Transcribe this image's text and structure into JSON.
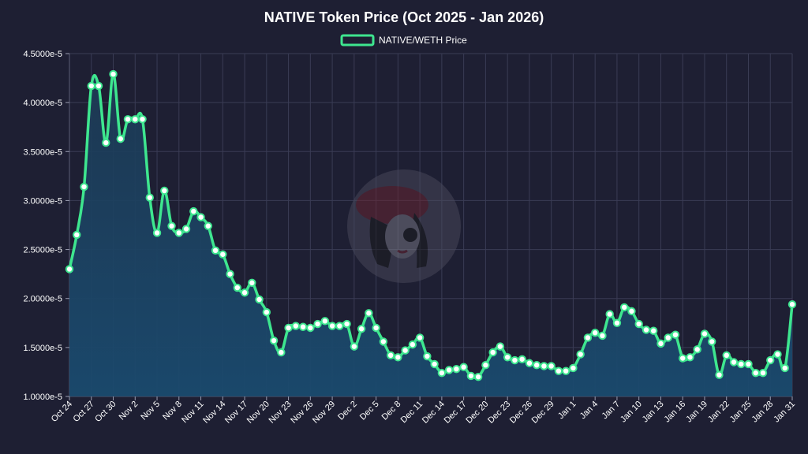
{
  "chart_data": {
    "type": "line",
    "title": "NATIVE Token Price (Oct 2025 - Jan 2026)",
    "xlabel": "",
    "ylabel": "",
    "ylim": [
      1e-05,
      4.5e-05
    ],
    "yticks": [
      "1.0000e-5",
      "1.5000e-5",
      "2.0000e-5",
      "2.5000e-5",
      "3.0000e-5",
      "3.5000e-5",
      "4.0000e-5",
      "4.5000e-5"
    ],
    "ytick_values": [
      1e-05,
      1.5e-05,
      2e-05,
      2.5e-05,
      3e-05,
      3.5e-05,
      4e-05,
      4.5e-05
    ],
    "xticks": [
      "Oct 24",
      "Oct 27",
      "Oct 30",
      "Nov 2",
      "Nov 5",
      "Nov 8",
      "Nov 11",
      "Nov 14",
      "Nov 17",
      "Nov 20",
      "Nov 23",
      "Nov 26",
      "Nov 29",
      "Dec 2",
      "Dec 5",
      "Dec 8",
      "Dec 11",
      "Dec 14",
      "Dec 17",
      "Dec 20",
      "Dec 23",
      "Dec 26",
      "Dec 29",
      "Jan 1",
      "Jan 4",
      "Jan 7",
      "Jan 10",
      "Jan 13",
      "Jan 16",
      "Jan 19",
      "Jan 22",
      "Jan 25",
      "Jan 28",
      "Jan 31"
    ],
    "grid": true,
    "legend_position": "top-center",
    "colors": {
      "line": "#3ee68f",
      "fill": "#1c4a6b",
      "background": "#1e1f33",
      "grid": "#3a3c55"
    },
    "series": [
      {
        "name": "NATIVE/WETH Price",
        "x": [
          "Oct 24",
          "Oct 25",
          "Oct 26",
          "Oct 27",
          "Oct 28",
          "Oct 29",
          "Oct 30",
          "Oct 31",
          "Nov 1",
          "Nov 2",
          "Nov 3",
          "Nov 4",
          "Nov 5",
          "Nov 6",
          "Nov 7",
          "Nov 8",
          "Nov 9",
          "Nov 10",
          "Nov 11",
          "Nov 12",
          "Nov 13",
          "Nov 14",
          "Nov 15",
          "Nov 16",
          "Nov 17",
          "Nov 18",
          "Nov 19",
          "Nov 20",
          "Nov 21",
          "Nov 22",
          "Nov 23",
          "Nov 24",
          "Nov 25",
          "Nov 26",
          "Nov 27",
          "Nov 28",
          "Nov 29",
          "Nov 30",
          "Dec 1",
          "Dec 2",
          "Dec 3",
          "Dec 4",
          "Dec 5",
          "Dec 6",
          "Dec 7",
          "Dec 8",
          "Dec 9",
          "Dec 10",
          "Dec 11",
          "Dec 12",
          "Dec 13",
          "Dec 14",
          "Dec 15",
          "Dec 16",
          "Dec 17",
          "Dec 18",
          "Dec 19",
          "Dec 20",
          "Dec 21",
          "Dec 22",
          "Dec 23",
          "Dec 24",
          "Dec 25",
          "Dec 26",
          "Dec 27",
          "Dec 28",
          "Dec 29",
          "Dec 30",
          "Dec 31",
          "Jan 1",
          "Jan 2",
          "Jan 3",
          "Jan 4",
          "Jan 5",
          "Jan 6",
          "Jan 7",
          "Jan 8",
          "Jan 9",
          "Jan 10",
          "Jan 11",
          "Jan 12",
          "Jan 13",
          "Jan 14",
          "Jan 15",
          "Jan 16",
          "Jan 17",
          "Jan 18",
          "Jan 19",
          "Jan 20",
          "Jan 21",
          "Jan 22",
          "Jan 23",
          "Jan 24",
          "Jan 25",
          "Jan 26",
          "Jan 27",
          "Jan 28",
          "Jan 29",
          "Jan 30",
          "Jan 31"
        ],
        "values": [
          2.3e-05,
          2.65e-05,
          3.14e-05,
          4.17e-05,
          4.17e-05,
          3.59e-05,
          4.29e-05,
          3.63e-05,
          3.83e-05,
          3.83e-05,
          3.83e-05,
          3.03e-05,
          2.67e-05,
          3.1e-05,
          2.74e-05,
          2.67e-05,
          2.71e-05,
          2.89e-05,
          2.83e-05,
          2.74e-05,
          2.49e-05,
          2.45e-05,
          2.25e-05,
          2.11e-05,
          2.06e-05,
          2.16e-05,
          1.99e-05,
          1.86e-05,
          1.57e-05,
          1.45e-05,
          1.7e-05,
          1.72e-05,
          1.71e-05,
          1.7e-05,
          1.74e-05,
          1.77e-05,
          1.72e-05,
          1.72e-05,
          1.74e-05,
          1.51e-05,
          1.69e-05,
          1.85e-05,
          1.7e-05,
          1.56e-05,
          1.42e-05,
          1.4e-05,
          1.47e-05,
          1.53e-05,
          1.6e-05,
          1.41e-05,
          1.33e-05,
          1.24e-05,
          1.27e-05,
          1.28e-05,
          1.3e-05,
          1.21e-05,
          1.2e-05,
          1.32e-05,
          1.45e-05,
          1.51e-05,
          1.4e-05,
          1.37e-05,
          1.38e-05,
          1.34e-05,
          1.32e-05,
          1.31e-05,
          1.31e-05,
          1.26e-05,
          1.26e-05,
          1.29e-05,
          1.43e-05,
          1.6e-05,
          1.65e-05,
          1.62e-05,
          1.84e-05,
          1.75e-05,
          1.91e-05,
          1.87e-05,
          1.74e-05,
          1.68e-05,
          1.67e-05,
          1.54e-05,
          1.6e-05,
          1.63e-05,
          1.39e-05,
          1.4e-05,
          1.48e-05,
          1.64e-05,
          1.56e-05,
          1.22e-05,
          1.42e-05,
          1.35e-05,
          1.33e-05,
          1.33e-05,
          1.24e-05,
          1.24e-05,
          1.37e-05,
          1.43e-05,
          1.29e-05,
          1.94e-05
        ]
      }
    ]
  }
}
